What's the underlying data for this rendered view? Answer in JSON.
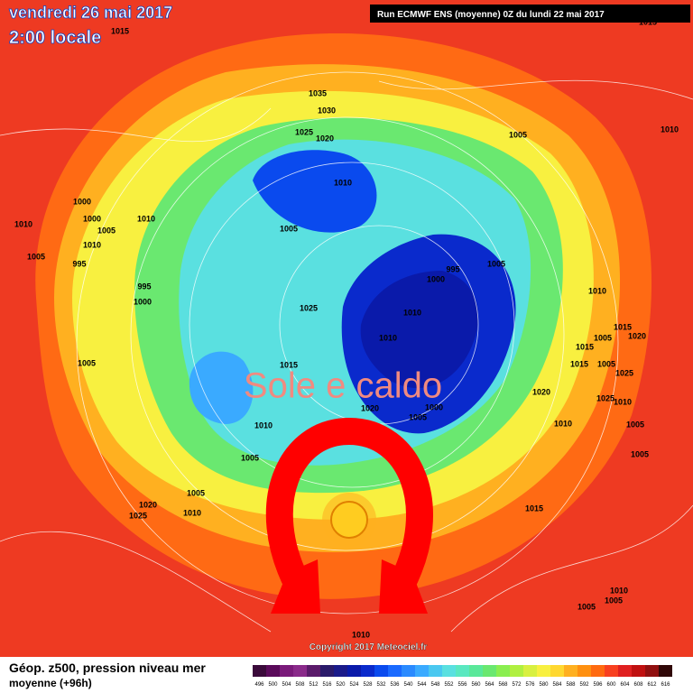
{
  "header": {
    "date": "vendredi 26 mai 2017",
    "time": "2:00 locale",
    "run": "Run ECMWF ENS (moyenne) 0Z du lundi 22 mai 2017"
  },
  "annotation": "Sole e caldo",
  "isobar_labels": [
    1015,
    1035,
    1030,
    1025,
    1020,
    1010,
    1005,
    1005,
    1010,
    1000,
    1000,
    1010,
    1005,
    1010,
    1010,
    1005,
    995,
    995,
    1000,
    995,
    1000,
    1005,
    1025,
    1010,
    1010,
    1010,
    1015,
    1005,
    1020,
    1015,
    1015,
    1005,
    1025,
    1005,
    1015,
    1020,
    1025,
    1010,
    1020,
    1005,
    1000,
    1010,
    1005,
    1010,
    1005,
    1005,
    1005,
    1020,
    1025,
    1010,
    1015,
    1010,
    1005,
    1005,
    1010,
    1015
  ],
  "footer": {
    "title": "Géop. z500, pression niveau mer",
    "subtitle": "moyenne  (+96h)",
    "copyright": "Copyright 2017 Meteociel.fr"
  },
  "color_scale": {
    "ticks": [
      496,
      500,
      504,
      508,
      512,
      516,
      520,
      524,
      528,
      532,
      536,
      540,
      544,
      548,
      552,
      556,
      560,
      564,
      568,
      572,
      576,
      580,
      584,
      588,
      592,
      596,
      600,
      604,
      608,
      612,
      616
    ],
    "colors": [
      "#3a0a3a",
      "#5a0a5a",
      "#7a1a7a",
      "#8a2a8a",
      "#5a1a6a",
      "#2a1a6a",
      "#1a1a8a",
      "#0a1aaa",
      "#0a2acc",
      "#0a4aee",
      "#1a6aff",
      "#2a8aff",
      "#3aaaff",
      "#4ac8f0",
      "#5ae0e0",
      "#5ae8c0",
      "#5ae89a",
      "#6ae870",
      "#8aee50",
      "#b0f040",
      "#d8f040",
      "#f8f040",
      "#ffd830",
      "#ffb020",
      "#ff9010",
      "#ff6a10",
      "#f84020",
      "#e02020",
      "#c01010",
      "#901010",
      "#300808"
    ]
  }
}
